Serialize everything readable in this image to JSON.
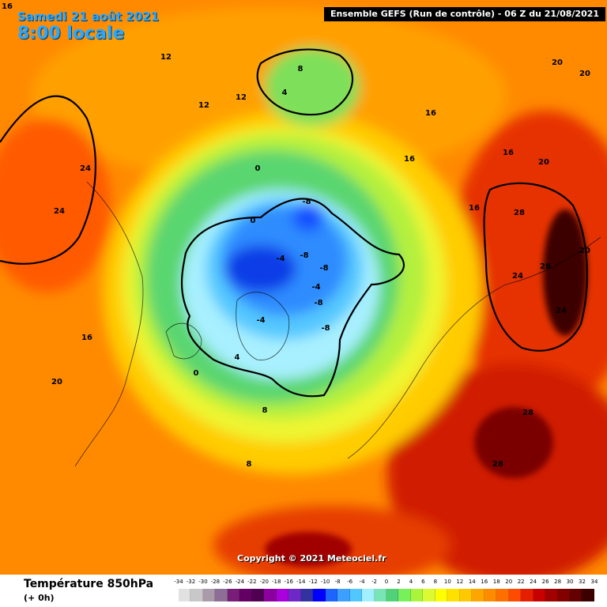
{
  "header": {
    "date": "Samedi 21 août 2021",
    "time": "8:00 locale",
    "corner_value": "16",
    "model": "Ensemble GEFS  (Run de contrôle)  -  06 Z du 21/08/2021"
  },
  "copyright": "Copyright © 2021 Meteociel.fr",
  "footer": {
    "variable": "Température 850hPa",
    "lead": "(+ 0h)"
  },
  "legend": {
    "ticks": [
      "-34",
      "-32",
      "-30",
      "-28",
      "-26",
      "-24",
      "-22",
      "-20",
      "-18",
      "-16",
      "-14",
      "-12",
      "-10",
      "-8",
      "-6",
      "-4",
      "-2",
      "0",
      "2",
      "4",
      "6",
      "8",
      "10",
      "12",
      "14",
      "16",
      "18",
      "20",
      "22",
      "24",
      "26",
      "28",
      "30",
      "32",
      "34"
    ],
    "colors": [
      "#e1e1e1",
      "#c8c8c8",
      "#aa9baa",
      "#8c6e96",
      "#781e78",
      "#640064",
      "#500050",
      "#8c00a0",
      "#aa00dc",
      "#6e28c8",
      "#3232a0",
      "#0000ff",
      "#1e64ff",
      "#3ca0ff",
      "#50c8ff",
      "#a0f0ff",
      "#78e6b4",
      "#50d278",
      "#78f05a",
      "#aaf53c",
      "#dcfa32",
      "#ffff00",
      "#ffe100",
      "#ffc800",
      "#ffa500",
      "#ff8c00",
      "#ff6e00",
      "#ff4b00",
      "#e61e00",
      "#c80000",
      "#a00000",
      "#820000",
      "#640000",
      "#3c0000"
    ]
  },
  "map_values": [
    {
      "v": "12"
    },
    {
      "v": "12"
    },
    {
      "v": "12"
    },
    {
      "v": "16"
    },
    {
      "v": "16"
    },
    {
      "v": "16"
    },
    {
      "v": "16"
    },
    {
      "v": "16"
    },
    {
      "v": "20"
    },
    {
      "v": "20"
    },
    {
      "v": "20"
    },
    {
      "v": "20"
    },
    {
      "v": "20"
    },
    {
      "v": "24"
    },
    {
      "v": "24"
    },
    {
      "v": "24"
    },
    {
      "v": "24"
    },
    {
      "v": "28"
    },
    {
      "v": "28"
    },
    {
      "v": "28"
    },
    {
      "v": "28"
    },
    {
      "v": "8"
    },
    {
      "v": "8"
    },
    {
      "v": "8"
    },
    {
      "v": "4"
    },
    {
      "v": "4"
    },
    {
      "v": "0"
    },
    {
      "v": "0"
    },
    {
      "v": "0"
    },
    {
      "v": "-4"
    },
    {
      "v": "-4"
    },
    {
      "v": "-4"
    },
    {
      "v": "-8"
    },
    {
      "v": "-8"
    },
    {
      "v": "-8"
    },
    {
      "v": "-8"
    },
    {
      "v": "-8"
    }
  ]
}
